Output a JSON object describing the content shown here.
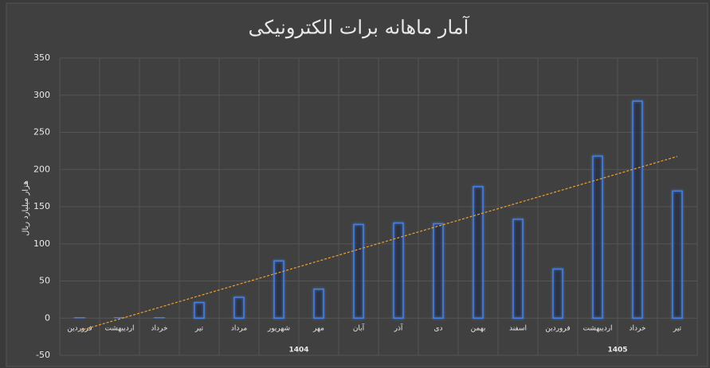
{
  "chart_data": {
    "type": "bar",
    "title": "آمار ماهانه برات الکترونیکی",
    "y_label": "هزار میلیارد ریال",
    "groups": [
      {
        "name": "1404",
        "categories": [
          "فروردین",
          "اردیبهشت",
          "خرداد",
          "تیر",
          "مرداد",
          "شهریور",
          "مهر",
          "آبان",
          "آذر",
          "دی",
          "بهمن",
          "اسفند"
        ]
      },
      {
        "name": "1405",
        "categories": [
          "فروردین",
          "اردیبهشت",
          "خرداد",
          "تیر"
        ]
      }
    ],
    "values": [
      1,
      1,
      1,
      21,
      28,
      77,
      39,
      126,
      128,
      127,
      177,
      133,
      66,
      218,
      292,
      171
    ],
    "color": "#4a80e0",
    "trendline": "linear",
    "trendline_color": "#f0a030",
    "ylim": [
      -50,
      350
    ],
    "yticks": [
      -50,
      0,
      50,
      100,
      150,
      200,
      250,
      300,
      350
    ],
    "grid": true
  }
}
